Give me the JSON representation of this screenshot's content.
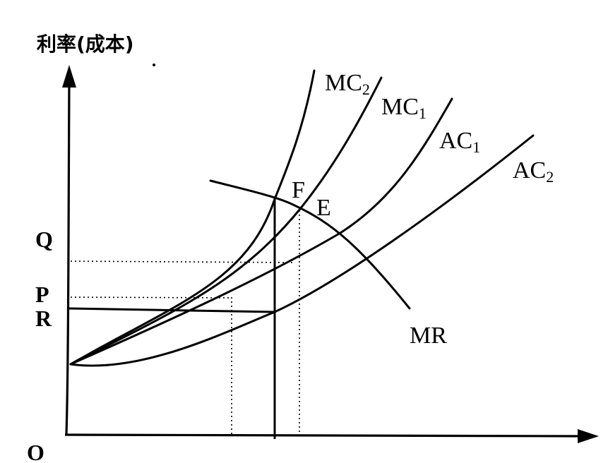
{
  "axes": {
    "y_label": "利率(成本)",
    "origin_label": "O"
  },
  "y_ticks": {
    "q": "Q",
    "p": "P",
    "r": "R"
  },
  "curves": {
    "mc2": {
      "base": "MC",
      "sub": "2"
    },
    "mc1": {
      "base": "MC",
      "sub": "1"
    },
    "ac1": {
      "base": "AC",
      "sub": "1"
    },
    "ac2": {
      "base": "AC",
      "sub": "2"
    },
    "mr": "MR"
  },
  "points": {
    "f": "F",
    "e": "E"
  }
}
